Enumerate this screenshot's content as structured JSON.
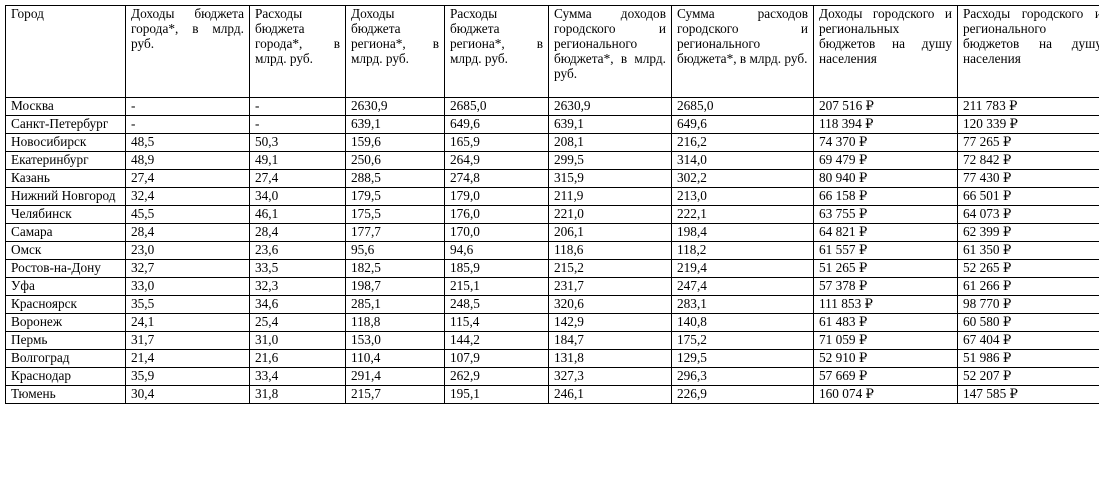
{
  "table": {
    "headers": [
      "Город",
      "Доходы бюджета города*, в млрд. руб.",
      "Расходы бюджета города*, в млрд. руб.",
      "Доходы бюджета региона*, в млрд. руб.",
      "Расходы бюджета региона*, в млрд. руб.",
      "Сумма доходов городского и регионального бюджета*, в млрд. руб.",
      "Сумма расходов городского и регионального бюджета*, в млрд. руб.",
      "Доходы городского и региональных бюджетов на душу населения",
      "Расходы городского и регионального бюджетов на душу населения"
    ],
    "rows": [
      [
        "Москва",
        "-",
        "-",
        "2630,9",
        "2685,0",
        "2630,9",
        "2685,0",
        "207 516 ₽",
        "211 783 ₽"
      ],
      [
        "Санкт-Петербург",
        "-",
        "-",
        "639,1",
        "649,6",
        "639,1",
        "649,6",
        "118 394 ₽",
        "120 339 ₽"
      ],
      [
        "Новосибирск",
        "48,5",
        "50,3",
        "159,6",
        "165,9",
        "208,1",
        "216,2",
        "74 370 ₽",
        "77 265 ₽"
      ],
      [
        "Екатеринбург",
        "48,9",
        "49,1",
        "250,6",
        "264,9",
        "299,5",
        "314,0",
        "69 479 ₽",
        "72 842 ₽"
      ],
      [
        "Казань",
        "27,4",
        "27,4",
        "288,5",
        "274,8",
        "315,9",
        "302,2",
        "80 940 ₽",
        "77 430 ₽"
      ],
      [
        "Нижний Новгород",
        "32,4",
        "34,0",
        "179,5",
        "179,0",
        "211,9",
        "213,0",
        "66 158 ₽",
        "66 501 ₽"
      ],
      [
        "Челябинск",
        "45,5",
        "46,1",
        "175,5",
        "176,0",
        "221,0",
        "222,1",
        "63 755 ₽",
        "64 073 ₽"
      ],
      [
        "Самара",
        "28,4",
        "28,4",
        "177,7",
        "170,0",
        "206,1",
        "198,4",
        "64 821 ₽",
        "62 399 ₽"
      ],
      [
        "Омск",
        "23,0",
        "23,6",
        "95,6",
        "94,6",
        "118,6",
        "118,2",
        "61 557 ₽",
        "61 350 ₽"
      ],
      [
        "Ростов-на-Дону",
        "32,7",
        "33,5",
        "182,5",
        "185,9",
        "215,2",
        "219,4",
        "51 265 ₽",
        "52 265 ₽"
      ],
      [
        "Уфа",
        "33,0",
        "32,3",
        "198,7",
        "215,1",
        "231,7",
        "247,4",
        "57 378 ₽",
        "61 266 ₽"
      ],
      [
        "Красноярск",
        "35,5",
        "34,6",
        "285,1",
        "248,5",
        "320,6",
        "283,1",
        "111 853 ₽",
        "98 770 ₽"
      ],
      [
        "Воронеж",
        "24,1",
        "25,4",
        "118,8",
        "115,4",
        "142,9",
        "140,8",
        "61 483 ₽",
        "60 580 ₽"
      ],
      [
        "Пермь",
        "31,7",
        "31,0",
        "153,0",
        "144,2",
        "184,7",
        "175,2",
        "71 059 ₽",
        "67 404 ₽"
      ],
      [
        "Волгоград",
        "21,4",
        "21,6",
        "110,4",
        "107,9",
        "131,8",
        "129,5",
        "52 910 ₽",
        "51 986 ₽"
      ],
      [
        "Краснодар",
        "35,9",
        "33,4",
        "291,4",
        "262,9",
        "327,3",
        "296,3",
        "57 669 ₽",
        "52 207 ₽"
      ],
      [
        "Тюмень",
        "30,4",
        "31,8",
        "215,7",
        "195,1",
        "246,1",
        "226,9",
        "160 074 ₽",
        "147 585 ₽"
      ]
    ]
  }
}
